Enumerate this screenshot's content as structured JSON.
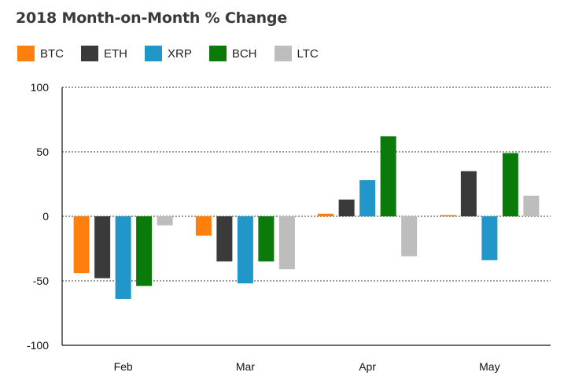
{
  "chart_data": {
    "type": "bar",
    "title": "2018 Month-on-Month % Change",
    "categories": [
      "Feb",
      "Mar",
      "Apr",
      "May"
    ],
    "series": [
      {
        "name": "BTC",
        "color": "#ff7f0e",
        "values": [
          -44,
          -15,
          2,
          1
        ]
      },
      {
        "name": "ETH",
        "color": "#3a3a3a",
        "values": [
          -48,
          -35,
          13,
          35
        ]
      },
      {
        "name": "XRP",
        "color": "#2196c8",
        "values": [
          -64,
          -52,
          28,
          -34
        ]
      },
      {
        "name": "BCH",
        "color": "#0a7a0a",
        "values": [
          -54,
          -35,
          62,
          49
        ]
      },
      {
        "name": "LTC",
        "color": "#bdbdbd",
        "values": [
          -7,
          -41,
          -31,
          16
        ]
      }
    ],
    "ylim": [
      -100,
      100
    ],
    "yticks": [
      "100",
      "50",
      "0",
      "-50",
      "-100"
    ],
    "grid": "dotted horizontal",
    "legend": "top-left"
  }
}
